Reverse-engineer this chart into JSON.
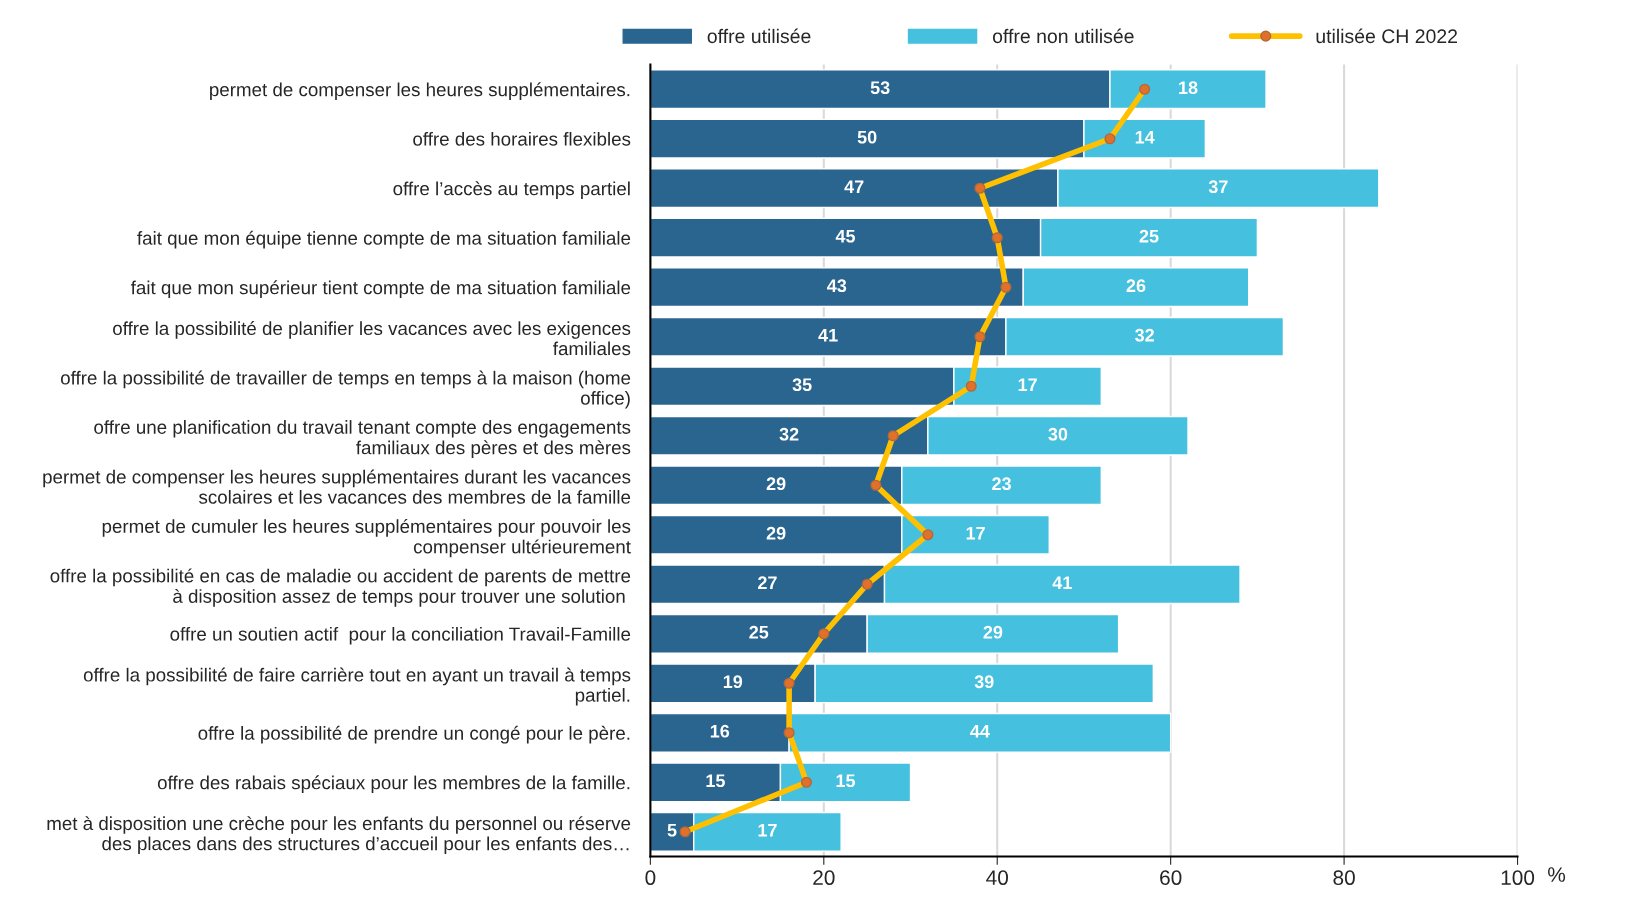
{
  "chart_data": {
    "type": "bar",
    "orientation": "horizontal",
    "stacked": true,
    "xlabel": "%",
    "categories": [
      "permet de compenser les heures supplémentaires.",
      "offre des horaires flexibles",
      "offre l’accès au temps partiel",
      "fait que mon équipe tienne compte de ma situation familiale",
      "fait que mon supérieur tient compte de ma situation familiale",
      "offre la possibilité de planifier les vacances avec les exigences\nfamiliales",
      "offre la possibilité de travailler de temps en temps à la maison (home\noffice)",
      "offre une planification du travail tenant compte des engagements\nfamiliaux des pères et des mères",
      "permet de compenser les heures supplémentaires durant les vacances\nscolaires et les vacances des membres de la famille",
      "permet de cumuler les heures supplémentaires pour pouvoir les\ncompenser ultérieurement",
      "offre la possibilité en cas de maladie ou accident de parents de mettre\nà disposition assez de temps pour trouver une solution ",
      "offre un soutien actif  pour la conciliation Travail-Famille",
      "offre la possibilité de faire carrière tout en ayant un travail à temps\npartiel.",
      "offre la possibilité de prendre un congé pour le père.",
      "offre des rabais spéciaux pour les membres de la famille.",
      "met à disposition une crèche pour les enfants du personnel ou réserve\ndes places dans des structures d’accueil pour les enfants des…"
    ],
    "series": [
      {
        "name": "offre utilisée",
        "color": "#2a6590",
        "values": [
          53,
          50,
          47,
          45,
          43,
          41,
          35,
          32,
          29,
          29,
          27,
          25,
          19,
          16,
          15,
          5
        ],
        "value_labels": [
          "53",
          "50",
          "47",
          "45",
          "43",
          "41",
          "35",
          "32",
          "29",
          "29",
          "27",
          "25",
          "19",
          "16",
          "15",
          "5"
        ]
      },
      {
        "name": "offre non utilisée",
        "color": "#45c0df",
        "values": [
          18,
          14,
          37,
          25,
          26,
          32,
          17,
          30,
          23,
          17,
          41,
          29,
          39,
          44,
          15,
          17
        ],
        "value_labels": [
          "18",
          "14",
          "37",
          "25",
          "26",
          "32",
          "17",
          "30",
          "23",
          "17",
          "41",
          "29",
          "39",
          "44",
          "15",
          "17"
        ]
      },
      {
        "name": "utilisée CH 2022",
        "type": "line",
        "color": "#ffc000",
        "marker": "circle",
        "values": [
          57,
          53,
          38,
          40,
          41,
          38,
          37,
          28,
          26,
          32,
          25,
          20,
          16,
          16,
          18,
          4
        ]
      }
    ],
    "xlim": [
      0,
      100
    ],
    "xticks": [
      0,
      20,
      40,
      60,
      80,
      100
    ],
    "grid": "x",
    "legend": "top"
  }
}
